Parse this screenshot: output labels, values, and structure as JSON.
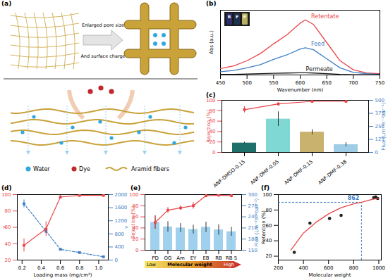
{
  "chart_data": [
    {
      "panel": "(a)",
      "type": "diagram",
      "arrow_text": [
        "Enlarged pore size",
        "And surface charge"
      ],
      "items": [
        {
          "label": "Water",
          "color": "#2fa8e0"
        },
        {
          "label": "Dye",
          "color": "#c0282d"
        },
        {
          "label": "Aramid fibers",
          "color": "#c9a23a"
        }
      ]
    },
    {
      "panel": "(b)",
      "type": "line",
      "x_label": "Wavenumber (nm)",
      "y_label": "Abs (a.u.)",
      "tick_labels": "x",
      "x": [
        450,
        475,
        500,
        525,
        550,
        575,
        600,
        610,
        625,
        650,
        675,
        700,
        725,
        750
      ],
      "xlim": [
        450,
        750
      ],
      "xticks": [
        450,
        500,
        550,
        600,
        650,
        700,
        750
      ],
      "ylim": [
        0,
        1
      ],
      "inset_labels": [
        "R",
        "F",
        "P"
      ],
      "series": [
        {
          "name": "Retentate",
          "color": "#e8474a",
          "values": [
            0.1,
            0.14,
            0.22,
            0.33,
            0.48,
            0.62,
            0.8,
            0.85,
            0.78,
            0.5,
            0.22,
            0.08,
            0.03,
            0.02
          ]
        },
        {
          "name": "Feed",
          "color": "#3f7fc4",
          "values": [
            0.05,
            0.07,
            0.11,
            0.16,
            0.24,
            0.31,
            0.4,
            0.42,
            0.39,
            0.25,
            0.11,
            0.04,
            0.02,
            0.01
          ]
        },
        {
          "name": "Permeate",
          "color": "#222222",
          "values": [
            0.01,
            0.01,
            0.015,
            0.02,
            0.025,
            0.03,
            0.035,
            0.035,
            0.03,
            0.02,
            0.01,
            0.005,
            0.003,
            0.002
          ]
        }
      ]
    },
    {
      "panel": "(c)",
      "type": "bar",
      "categories": [
        "ANF-DMSO-0.15",
        "ANF-DMF-0.05",
        "ANF-DMF-0.15",
        "ANF-DMF-0.38"
      ],
      "y_label": "Rejection (%)",
      "ylim": [
        0,
        100
      ],
      "yticks": [
        0,
        20,
        40,
        60,
        80,
        100
      ],
      "y2_label": "Flux (Lm⁻²h⁻¹bar⁻¹)",
      "y2lim": [
        0,
        500
      ],
      "y2ticks": [
        0,
        125,
        250,
        375,
        500
      ],
      "series": [
        {
          "type": "bar",
          "axis": "y2",
          "colors": [
            "#1f6f6a",
            "#7fd8d3",
            "#c9b26e",
            "#9fcde8"
          ],
          "values": [
            90,
            320,
            195,
            75
          ],
          "errors": [
            8,
            70,
            25,
            20
          ]
        },
        {
          "type": "line",
          "color": "#e8474a",
          "marker": "circle",
          "values": [
            82,
            93,
            98,
            98
          ],
          "errors": [
            6,
            3,
            1,
            1
          ]
        }
      ]
    },
    {
      "panel": "(d)",
      "type": "line",
      "x_label": "Loading mass (mg/cm²)",
      "x": [
        0.22,
        0.45,
        0.6,
        0.8,
        1.05
      ],
      "xlim": [
        0.15,
        1.1
      ],
      "xticks": [
        0.2,
        0.4,
        0.6,
        0.8,
        {
          "value": 1,
          "label": "1.0"
        }
      ],
      "ylim": [
        20,
        100
      ],
      "yticks": [
        20,
        40,
        60,
        80,
        100
      ],
      "y2lim": [
        0,
        2000
      ],
      "y2ticks": [
        0,
        400,
        800,
        1200,
        1600,
        2000
      ],
      "series": [
        {
          "type": "line",
          "axis": "y2",
          "color": "#3f7fc4",
          "marker": "square",
          "line_style": "dashed",
          "values": [
            1720,
            880,
            330,
            230,
            100
          ],
          "errors": [
            120,
            60,
            30,
            20,
            10
          ]
        },
        {
          "type": "line",
          "color": "#e8474a",
          "marker": "circle",
          "line_style": "solid",
          "values": [
            38,
            58,
            97,
            99,
            99
          ],
          "errors": [
            8,
            9,
            2,
            1,
            1
          ]
        }
      ]
    },
    {
      "panel": "(e)",
      "type": "bar",
      "categories": [
        "PD",
        "OG",
        "Am",
        "EY",
        "EB",
        "RB",
        "RB 5"
      ],
      "x_label": "Molecular weight",
      "x_gradient_labels": [
        "Low",
        "High"
      ],
      "y_label": "Rejection (%)",
      "ylim": [
        0,
        100
      ],
      "yticks": [
        0,
        20,
        40,
        60,
        80,
        100
      ],
      "y2_label": "Flux (Lm⁻²h⁻¹bar⁻¹)",
      "y2lim": [
        150,
        300
      ],
      "y2ticks": [
        150,
        180,
        210,
        240,
        270,
        300
      ],
      "series": [
        {
          "type": "bar",
          "axis": "y2",
          "color": "#9fd0ee",
          "values": [
            225,
            213,
            210,
            206,
            212,
            205,
            200
          ],
          "errors": [
            18,
            14,
            12,
            12,
            14,
            14,
            12
          ]
        },
        {
          "type": "line",
          "color": "#e8474a",
          "marker": "circle",
          "values": [
            50,
            72,
            76,
            80,
            98,
            99,
            98
          ],
          "errors": [
            12,
            5,
            4,
            6,
            1,
            1,
            1
          ]
        }
      ]
    },
    {
      "panel": "(f)",
      "type": "scatter",
      "x_label": "Molecular weight",
      "y_label": "Retention (%)",
      "xlim": [
        200,
        1020
      ],
      "xticks": [
        200,
        400,
        600,
        800,
        1000
      ],
      "ylim": [
        15,
        100
      ],
      "yticks": [
        20,
        40,
        60,
        80,
        100
      ],
      "annotation": {
        "text": "862",
        "x": 862,
        "y": 90
      },
      "series": [
        {
          "type": "scatter",
          "color": "#222222",
          "marker": "circle",
          "x": [
            327,
            452,
            608,
            700,
            960,
            975,
            991
          ],
          "values": [
            25,
            63,
            69,
            73,
            96,
            97,
            95
          ]
        },
        {
          "type": "line",
          "color": "#e8474a",
          "x": [
            300,
            400,
            500,
            600,
            700,
            800,
            862,
            950,
            1000
          ],
          "values": [
            28,
            50,
            64,
            75,
            83,
            88,
            90,
            94,
            95
          ]
        }
      ]
    }
  ]
}
